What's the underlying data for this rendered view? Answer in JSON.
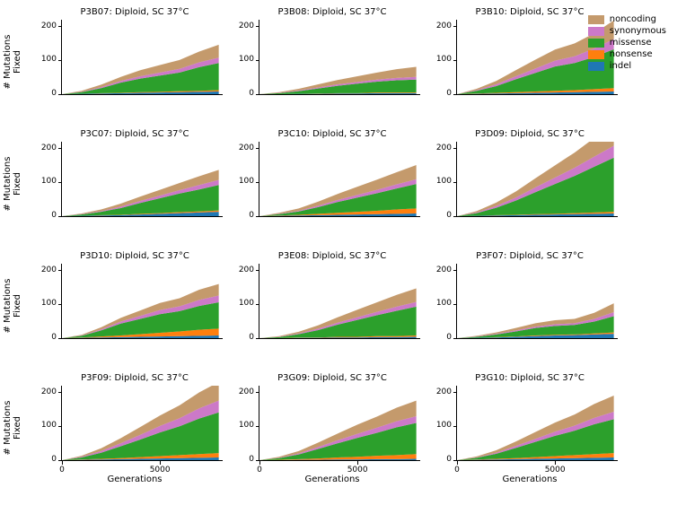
{
  "layout": {
    "rows": 4,
    "cols": 3
  },
  "axes": {
    "xlabel": "Generations",
    "ylabel": "# Mutations\nFixed",
    "xlim": [
      0,
      8200
    ],
    "ylim": [
      0,
      220
    ],
    "xticks": [
      0,
      5000
    ],
    "yticks": [
      0,
      100,
      200
    ],
    "title_fontsize": 10,
    "label_fontsize": 10,
    "tick_fontsize": 9,
    "background_color": "#ffffff"
  },
  "x": [
    0,
    1000,
    2000,
    3000,
    4000,
    5000,
    6000,
    7000,
    8000
  ],
  "categories": [
    "indel",
    "nonsense",
    "missense",
    "synonymous",
    "noncoding"
  ],
  "colors": {
    "indel": "#1f77b4",
    "nonsense": "#ff7f0e",
    "missense": "#2ca02c",
    "synonymous": "#cc79c8",
    "noncoding": "#c49a6c"
  },
  "legend": {
    "order": [
      "noncoding",
      "synonymous",
      "missense",
      "nonsense",
      "indel"
    ],
    "labels": {
      "noncoding": "noncoding",
      "synonymous": "synonymous",
      "missense": "missense",
      "nonsense": "nonsense",
      "indel": "indel"
    }
  },
  "panels": [
    {
      "title": "P3B07: Diploid, SC 37°C",
      "series": {
        "indel": [
          0,
          1,
          2,
          3,
          4,
          5,
          6,
          7,
          8
        ],
        "nonsense": [
          0,
          0,
          1,
          1,
          2,
          2,
          3,
          3,
          4
        ],
        "missense": [
          0,
          5,
          15,
          30,
          40,
          48,
          55,
          70,
          80
        ],
        "synonymous": [
          0,
          1,
          3,
          5,
          7,
          9,
          11,
          14,
          16
        ],
        "noncoding": [
          0,
          3,
          7,
          12,
          18,
          22,
          26,
          32,
          38
        ]
      }
    },
    {
      "title": "P3B08: Diploid, SC 37°C",
      "series": {
        "indel": [
          0,
          0,
          1,
          1,
          2,
          2,
          3,
          3,
          3
        ],
        "nonsense": [
          0,
          0,
          0,
          1,
          1,
          1,
          2,
          2,
          2
        ],
        "missense": [
          0,
          3,
          8,
          15,
          22,
          28,
          32,
          36,
          38
        ],
        "synonymous": [
          0,
          1,
          2,
          3,
          4,
          5,
          6,
          7,
          8
        ],
        "noncoding": [
          0,
          2,
          5,
          9,
          13,
          17,
          21,
          26,
          30
        ]
      }
    },
    {
      "title": "P3B10: Diploid, SC 37°C",
      "series": {
        "indel": [
          0,
          1,
          2,
          3,
          4,
          5,
          6,
          7,
          8
        ],
        "nonsense": [
          0,
          1,
          2,
          3,
          4,
          5,
          6,
          8,
          10
        ],
        "missense": [
          0,
          8,
          20,
          38,
          55,
          72,
          80,
          95,
          115
        ],
        "synonymous": [
          0,
          2,
          5,
          9,
          13,
          17,
          20,
          25,
          30
        ],
        "noncoding": [
          0,
          4,
          10,
          18,
          26,
          33,
          38,
          45,
          55
        ]
      }
    },
    {
      "title": "P3C07: Diploid, SC 37°C",
      "series": {
        "indel": [
          0,
          1,
          2,
          3,
          5,
          7,
          9,
          11,
          13
        ],
        "nonsense": [
          0,
          0,
          1,
          1,
          2,
          2,
          3,
          3,
          4
        ],
        "missense": [
          0,
          4,
          10,
          20,
          32,
          44,
          55,
          65,
          75
        ],
        "synonymous": [
          0,
          1,
          2,
          4,
          6,
          8,
          10,
          13,
          15
        ],
        "noncoding": [
          0,
          2,
          5,
          9,
          13,
          17,
          21,
          26,
          30
        ]
      }
    },
    {
      "title": "P3C10: Diploid, SC 37°C",
      "series": {
        "indel": [
          0,
          1,
          2,
          3,
          4,
          5,
          6,
          7,
          8
        ],
        "nonsense": [
          0,
          1,
          2,
          4,
          6,
          8,
          10,
          13,
          15
        ],
        "missense": [
          0,
          4,
          10,
          20,
          32,
          42,
          52,
          62,
          72
        ],
        "synonymous": [
          0,
          1,
          2,
          4,
          6,
          8,
          10,
          12,
          14
        ],
        "noncoding": [
          0,
          3,
          7,
          12,
          18,
          24,
          30,
          36,
          42
        ]
      }
    },
    {
      "title": "P3D09: Diploid, SC 37°C",
      "series": {
        "indel": [
          0,
          1,
          2,
          3,
          4,
          5,
          6,
          7,
          8
        ],
        "nonsense": [
          0,
          0,
          1,
          1,
          2,
          2,
          3,
          4,
          5
        ],
        "missense": [
          0,
          8,
          22,
          42,
          65,
          88,
          110,
          135,
          160
        ],
        "synonymous": [
          0,
          2,
          5,
          9,
          14,
          19,
          24,
          30,
          35
        ],
        "noncoding": [
          0,
          4,
          10,
          18,
          27,
          36,
          45,
          55,
          65
        ]
      }
    },
    {
      "title": "P3D10: Diploid, SC 37°C",
      "series": {
        "indel": [
          0,
          1,
          2,
          3,
          4,
          5,
          6,
          7,
          8
        ],
        "nonsense": [
          0,
          1,
          3,
          5,
          8,
          11,
          14,
          18,
          20
        ],
        "missense": [
          0,
          5,
          18,
          35,
          45,
          55,
          60,
          70,
          78
        ],
        "synonymous": [
          0,
          1,
          3,
          6,
          9,
          12,
          14,
          18,
          20
        ],
        "noncoding": [
          0,
          2,
          6,
          11,
          16,
          21,
          24,
          30,
          34
        ]
      }
    },
    {
      "title": "P3E08: Diploid, SC 37°C",
      "series": {
        "indel": [
          0,
          0,
          1,
          1,
          2,
          2,
          3,
          3,
          4
        ],
        "nonsense": [
          0,
          0,
          1,
          1,
          2,
          2,
          3,
          3,
          4
        ],
        "missense": [
          0,
          3,
          10,
          22,
          36,
          50,
          62,
          75,
          85
        ],
        "synonymous": [
          0,
          1,
          2,
          4,
          6,
          8,
          10,
          12,
          14
        ],
        "noncoding": [
          0,
          2,
          5,
          10,
          16,
          22,
          28,
          35,
          40
        ]
      }
    },
    {
      "title": "P3F07: Diploid, SC 37°C",
      "series": {
        "indel": [
          0,
          1,
          2,
          4,
          6,
          8,
          9,
          11,
          13
        ],
        "nonsense": [
          0,
          0,
          1,
          1,
          2,
          2,
          2,
          3,
          4
        ],
        "missense": [
          0,
          3,
          8,
          15,
          22,
          26,
          28,
          35,
          48
        ],
        "synonymous": [
          0,
          1,
          2,
          3,
          4,
          5,
          5,
          8,
          12
        ],
        "noncoding": [
          0,
          2,
          4,
          7,
          10,
          12,
          13,
          18,
          26
        ]
      }
    },
    {
      "title": "P3F09: Diploid, SC 37°C",
      "series": {
        "indel": [
          0,
          1,
          2,
          3,
          4,
          5,
          6,
          7,
          8
        ],
        "nonsense": [
          0,
          1,
          2,
          3,
          5,
          7,
          9,
          11,
          13
        ],
        "missense": [
          0,
          6,
          18,
          35,
          52,
          70,
          85,
          105,
          120
        ],
        "synonymous": [
          0,
          2,
          5,
          9,
          14,
          19,
          24,
          30,
          35
        ],
        "noncoding": [
          0,
          3,
          8,
          15,
          23,
          31,
          38,
          47,
          55
        ]
      }
    },
    {
      "title": "P3G09: Diploid, SC 37°C",
      "series": {
        "indel": [
          0,
          0,
          1,
          1,
          2,
          2,
          3,
          3,
          4
        ],
        "nonsense": [
          0,
          1,
          2,
          4,
          6,
          8,
          10,
          12,
          14
        ],
        "missense": [
          0,
          5,
          14,
          28,
          42,
          56,
          68,
          82,
          92
        ],
        "synonymous": [
          0,
          1,
          3,
          6,
          9,
          12,
          15,
          18,
          20
        ],
        "noncoding": [
          0,
          3,
          7,
          13,
          20,
          27,
          33,
          40,
          46
        ]
      }
    },
    {
      "title": "P3G10: Diploid, SC 37°C",
      "series": {
        "indel": [
          0,
          1,
          2,
          3,
          4,
          5,
          6,
          7,
          8
        ],
        "nonsense": [
          0,
          1,
          2,
          3,
          5,
          7,
          9,
          11,
          13
        ],
        "missense": [
          0,
          5,
          15,
          30,
          45,
          60,
          72,
          88,
          100
        ],
        "synonymous": [
          0,
          1,
          3,
          6,
          9,
          12,
          15,
          19,
          22
        ],
        "noncoding": [
          0,
          3,
          7,
          13,
          20,
          27,
          33,
          41,
          48
        ]
      }
    }
  ]
}
